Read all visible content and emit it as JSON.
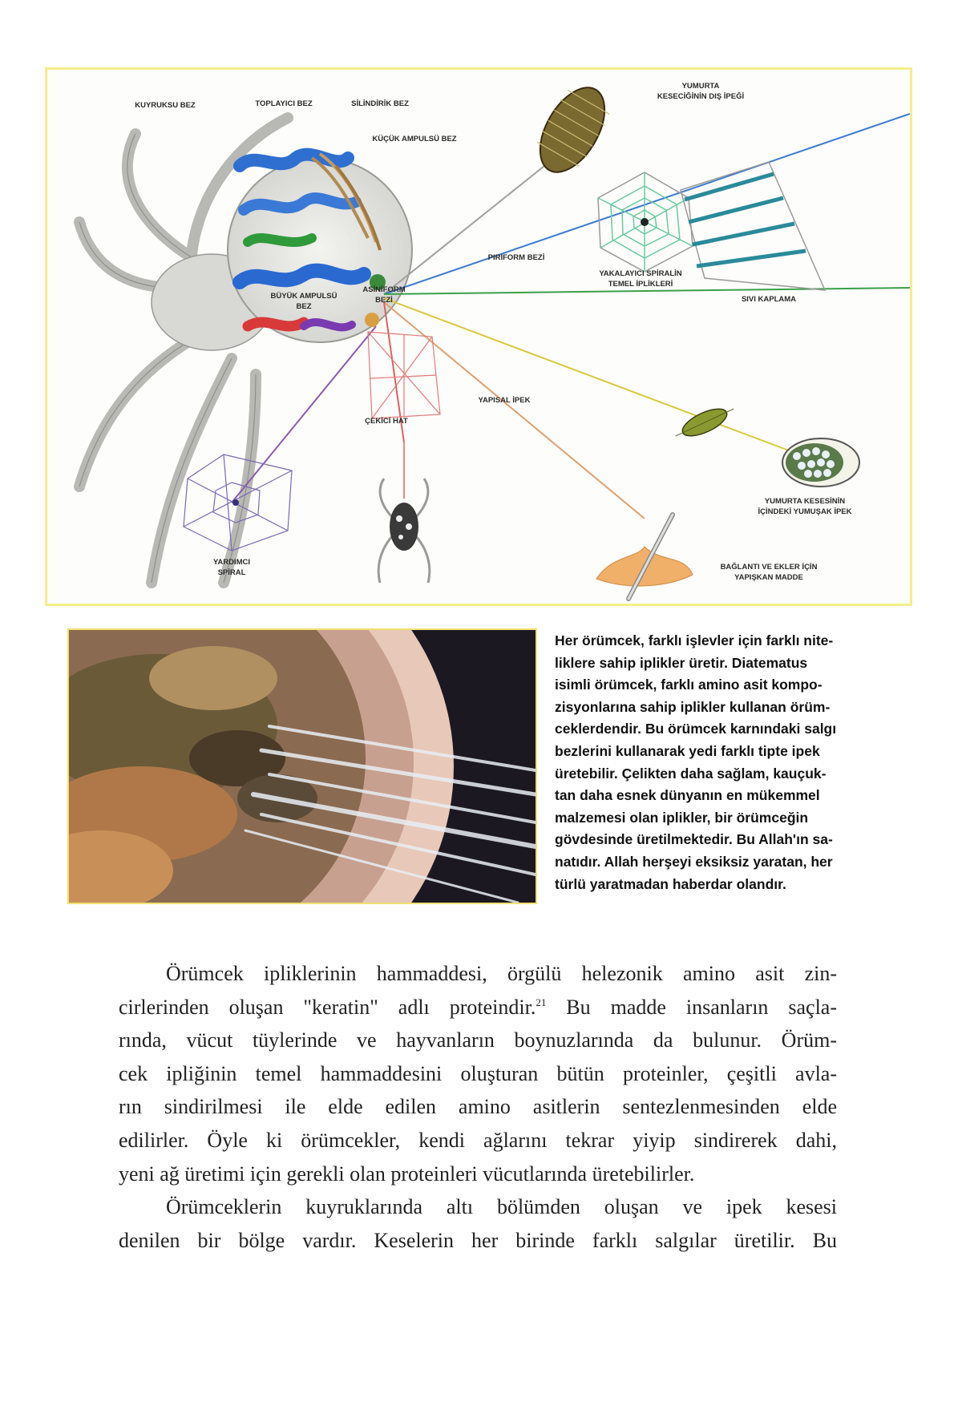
{
  "figure": {
    "labels": {
      "kuyruksu_bez": "KUYRUKSU BEZ",
      "toplayici_bez": "TOPLAYICI BEZ",
      "silindirik_bez": "SİLİNDİRİK BEZ",
      "kucuk_ampulsu_bez": "KÜÇÜK AMPULSÜ BEZ",
      "yumurta_kesecigi": "YUMURTA\nKESECİĞİNİN DIŞ İPEĞİ",
      "piriform_bezi": "PIRIFORM BEZİ",
      "yakalayici_spiral": "YAKALAYICI SPİRALİN\nTEMEL İPLİKLERİ",
      "sivi_kaplama": "SIVI KAPLAMA",
      "buyuk_ampulsu_bez": "BÜYÜK AMPULSÜ\nBEZ",
      "asiniform_bezi": "ASİNİFORM\nBEZİ",
      "yapisal_ipek": "YAPISAL İPEK",
      "cekici_hat": "ÇEKİCİ HAT",
      "yumurta_kesesi_ic": "YUMURTA KESESİNİN\nİÇİNDEKİ YUMUŞAK İPEK",
      "yardimci_spiral": "YARDIMCI\nSPİRAL",
      "baglanti": "BAĞLANTI VE EKLER İÇİN\nYAPIŞKAN MADDE"
    }
  },
  "caption": {
    "lines": [
      "Her örümcek, farklı işlevler için farklı nite-",
      "liklere sahip iplikler üretir. Diatematus",
      "isimli örümcek, farklı amino asit kompo-",
      "zisyonlarına sahip iplikler kullanan örüm-",
      "ceklerdendir. Bu örümcek karnındaki salgı",
      "bezlerini kullanarak yedi farklı tipte ipek",
      "üretebilir. Çelikten daha sağlam, kauçuk-",
      "tan daha esnek dünyanın en mükemmel",
      "malzemesi olan iplikler, bir örümceğin",
      "gövdesinde üretilmektedir. Bu Allah'ın sa-",
      "natıdır. Allah herşeyi eksiksiz yaratan, her",
      "türlü yaratmadan haberdar olandır."
    ]
  },
  "body": {
    "p1_l1": "Örümcek ipliklerinin hammaddesi, örgülü helezonik amino asit zin-",
    "p1_l2a": "cirlerinden oluşan \"keratin\" adlı proteindir.",
    "p1_l2_sup": "21",
    "p1_l2b": " Bu madde insanların saçla-",
    "p1_l3": "rında, vücut tüylerinde ve hayvanların boynuzlarında da bulunur. Örüm-",
    "p1_l4": "cek ipliğinin temel hammaddesini oluşturan bütün proteinler, çeşitli avla-",
    "p1_l5": "rın sindirilmesi ile elde edilen amino asitlerin sentezlenmesinden elde",
    "p1_l6": "edilirler. Öyle ki örümcekler, kendi ağlarını tekrar yiyip sindirerek dahi,",
    "p1_l7": "yeni ağ üretimi için gerekli olan proteinleri vücutlarında üretebilirler.",
    "p2_l1": "Örümceklerin kuyruklarında altı bölümden oluşan ve ipek kesesi",
    "p2_l2": "denilen bir bölge vardır. Keselerin her birinde farklı salgılar üretilir. Bu"
  }
}
